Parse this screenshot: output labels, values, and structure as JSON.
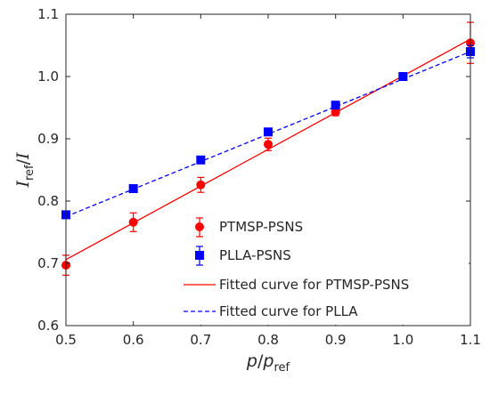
{
  "chart_data": {
    "type": "scatter",
    "xlabel": {
      "var": "p",
      "slash": "/",
      "var2": "p",
      "sub": "ref"
    },
    "ylabel": {
      "var": "I",
      "sub": "ref",
      "slash": "/",
      "var2": "I"
    },
    "xlim": [
      0.5,
      1.1
    ],
    "ylim": [
      0.6,
      1.1
    ],
    "x_ticks": [
      "0.5",
      "0.6",
      "0.7",
      "0.8",
      "0.9",
      "1.0",
      "1.1"
    ],
    "y_ticks": [
      "0.6",
      "0.7",
      "0.8",
      "0.9",
      "1.0",
      "1.1"
    ],
    "grid": false,
    "legend_position": "bottom-right",
    "series": [
      {
        "name": "PTMSP-PSNS",
        "marker": "circle",
        "color": "#ff0000",
        "x": [
          0.5,
          0.6,
          0.7,
          0.8,
          0.9,
          1.0,
          1.1
        ],
        "y": [
          0.697,
          0.766,
          0.826,
          0.891,
          0.943,
          1.0,
          1.054
        ],
        "err": [
          0.016,
          0.015,
          0.012,
          0.01,
          0.006,
          0.003,
          0.033
        ]
      },
      {
        "name": "PLLA-PSNS",
        "marker": "square",
        "color": "#0000ff",
        "x": [
          0.5,
          0.6,
          0.7,
          0.8,
          0.9,
          1.0,
          1.1
        ],
        "y": [
          0.778,
          0.82,
          0.866,
          0.911,
          0.954,
          1.0,
          1.04
        ],
        "err": [
          0.004,
          0.004,
          0.004,
          0.004,
          0.004,
          0.002,
          0.01
        ]
      }
    ],
    "fits": [
      {
        "name": "Fitted curve for PTMSP-PSNS",
        "style": "solid",
        "color": "#ff0000",
        "x": [
          0.5,
          1.1
        ],
        "y": [
          0.706,
          1.06
        ]
      },
      {
        "name": "Fitted curve for PLLA",
        "style": "dashed",
        "color": "#0000ff",
        "x": [
          0.5,
          1.1
        ],
        "y": [
          0.775,
          1.04
        ]
      }
    ]
  }
}
